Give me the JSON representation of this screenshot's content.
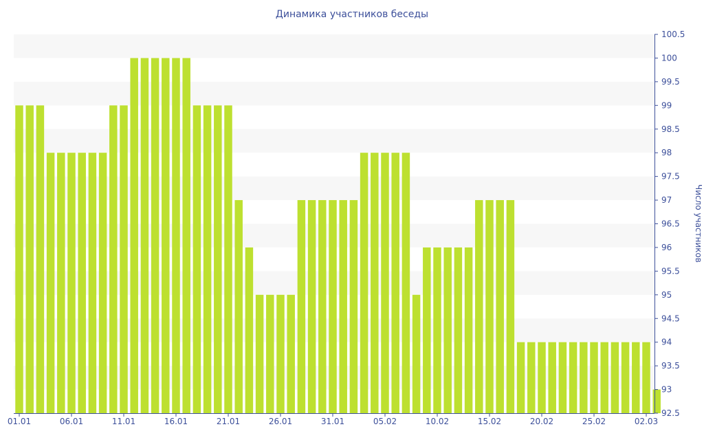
{
  "chart_data": {
    "type": "bar",
    "title": "Динамика участников беседы",
    "xlabel": "",
    "ylabel": "Число участников",
    "ylim": [
      92.5,
      100.5
    ],
    "yticks": [
      "92.5",
      "93",
      "93.5",
      "94",
      "94.5",
      "95",
      "95.5",
      "96",
      "96.5",
      "97",
      "97.5",
      "98",
      "98.5",
      "99",
      "99.5",
      "100",
      "100.5"
    ],
    "xtick_labels": [
      "01.01",
      "06.01",
      "11.01",
      "16.01",
      "21.01",
      "26.01",
      "31.01",
      "05.02",
      "10.02",
      "15.02",
      "20.02",
      "25.02",
      "02.03"
    ],
    "xtick_every": 5,
    "start_date": "01.01",
    "values": [
      99,
      99,
      99,
      98,
      98,
      98,
      98,
      98,
      98,
      99,
      99,
      100,
      100,
      100,
      100,
      100,
      100,
      99,
      99,
      99,
      99,
      97,
      96,
      95,
      95,
      95,
      95,
      97,
      97,
      97,
      97,
      97,
      97,
      98,
      98,
      98,
      98,
      98,
      95,
      96,
      96,
      96,
      96,
      96,
      97,
      97,
      97,
      97,
      94,
      94,
      94,
      94,
      94,
      94,
      94,
      94,
      94,
      94,
      94,
      94,
      94,
      93
    ],
    "bar_color": "#bde030",
    "axis_color": "#3c4f9a",
    "band_color": "#f7f7f7",
    "grid": "alternating-bands",
    "legend": "none"
  }
}
